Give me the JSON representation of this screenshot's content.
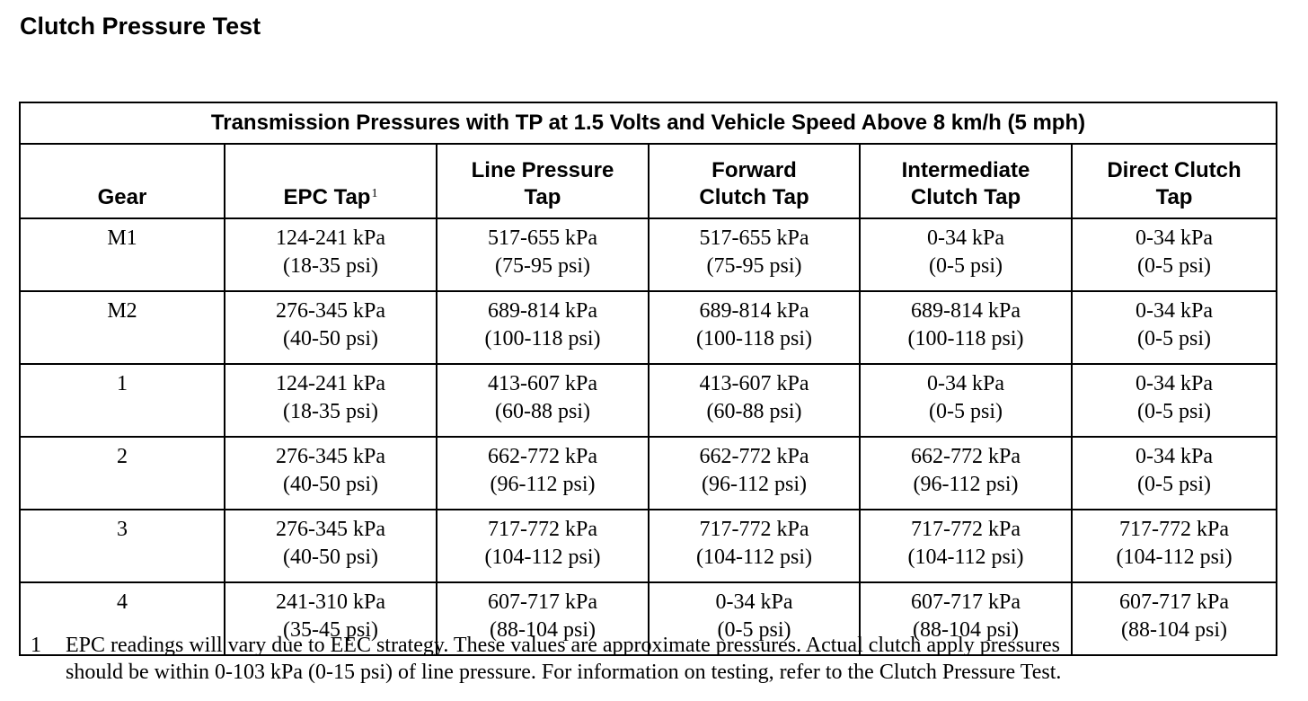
{
  "page": {
    "title": "Clutch Pressure Test"
  },
  "table": {
    "caption": "Transmission Pressures with TP at 1.5 Volts and Vehicle Speed Above 8 km/h (5 mph)",
    "headers": [
      {
        "lines": [
          "Gear"
        ],
        "sup": ""
      },
      {
        "lines": [
          "EPC Tap"
        ],
        "sup": "1"
      },
      {
        "lines": [
          "Line Pressure",
          "Tap"
        ],
        "sup": ""
      },
      {
        "lines": [
          "Forward",
          "Clutch Tap"
        ],
        "sup": ""
      },
      {
        "lines": [
          "Intermediate",
          "Clutch Tap"
        ],
        "sup": ""
      },
      {
        "lines": [
          "Direct Clutch",
          "Tap"
        ],
        "sup": ""
      }
    ],
    "rows": [
      [
        "M1",
        "124-241 kPa|(18-35 psi)",
        "517-655 kPa|(75-95 psi)",
        "517-655 kPa|(75-95 psi)",
        "0-34 kPa|(0-5 psi)",
        "0-34 kPa|(0-5 psi)"
      ],
      [
        "M2",
        "276-345 kPa|(40-50 psi)",
        "689-814 kPa|(100-118 psi)",
        "689-814 kPa|(100-118 psi)",
        "689-814 kPa|(100-118 psi)",
        "0-34 kPa|(0-5 psi)"
      ],
      [
        "1",
        "124-241 kPa|(18-35 psi)",
        "413-607 kPa|(60-88 psi)",
        "413-607 kPa|(60-88 psi)",
        "0-34 kPa|(0-5 psi)",
        "0-34 kPa|(0-5 psi)"
      ],
      [
        "2",
        "276-345 kPa|(40-50 psi)",
        "662-772 kPa|(96-112 psi)",
        "662-772 kPa|(96-112 psi)",
        "662-772 kPa|(96-112 psi)",
        "0-34 kPa|(0-5 psi)"
      ],
      [
        "3",
        "276-345 kPa|(40-50 psi)",
        "717-772 kPa|(104-112 psi)",
        "717-772 kPa|(104-112 psi)",
        "717-772 kPa|(104-112 psi)",
        "717-772 kPa|(104-112 psi)"
      ],
      [
        "4",
        "241-310 kPa|(35-45 psi)",
        "607-717 kPa|(88-104 psi)",
        "0-34 kPa|(0-5 psi)",
        "607-717 kPa|(88-104 psi)",
        "607-717 kPa|(88-104 psi)"
      ]
    ]
  },
  "footnote": {
    "number": "1",
    "lines": [
      "EPC readings will vary due to EEC strategy. These values are approximate pressures. Actual clutch apply pressures",
      "should be within 0-103 kPa (0-15 psi) of line pressure. For information on testing, refer to the Clutch Pressure Test."
    ]
  }
}
